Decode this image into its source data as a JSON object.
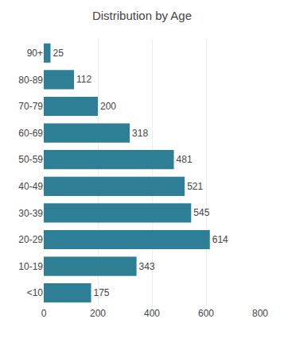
{
  "chart_data": {
    "type": "bar",
    "title": "Distribution by Age",
    "categories": [
      "<10",
      "10-19",
      "20-29",
      "30-39",
      "40-49",
      "50-59",
      "60-69",
      "70-79",
      "80-89",
      "90+"
    ],
    "values": [
      175,
      343,
      614,
      545,
      521,
      481,
      318,
      200,
      112,
      25
    ],
    "color": "#2e7f96",
    "orientation": "horizontal",
    "xlim": [
      0,
      800
    ],
    "xticks": [
      0,
      200,
      400,
      600,
      800
    ],
    "grid": true,
    "data_labels": true
  }
}
